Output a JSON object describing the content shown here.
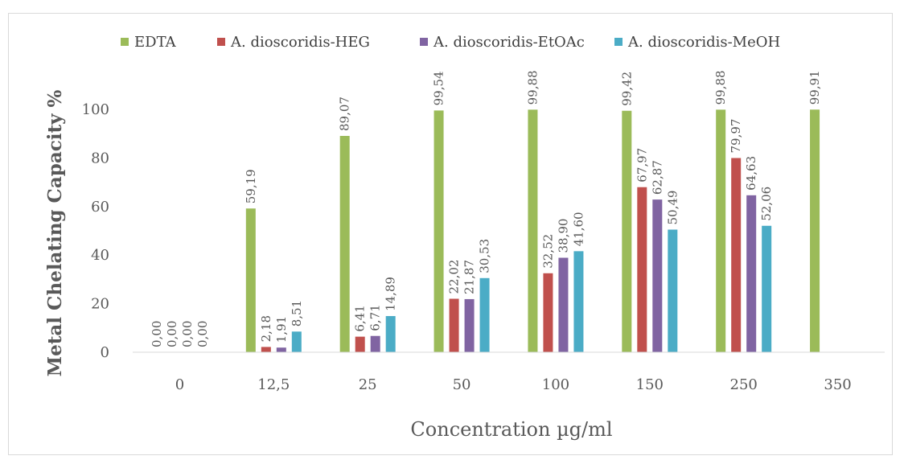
{
  "chart_data": {
    "type": "bar",
    "xlabel": "Concentration µg/ml",
    "ylabel": "Metal Chelating Capacity %",
    "categories": [
      "0",
      "12,5",
      "25",
      "50",
      "100",
      "150",
      "250",
      "350"
    ],
    "ylim": [
      0,
      100
    ],
    "yticks": [
      "0",
      "20",
      "40",
      "60",
      "80",
      "100"
    ],
    "legend_position": "top",
    "series": [
      {
        "name": "EDTA",
        "color": "#9bbb59",
        "values": [
          0.0,
          59.19,
          89.07,
          99.54,
          99.88,
          99.42,
          99.88,
          99.91
        ],
        "labels": [
          "0,00",
          "59,19",
          "89,07",
          "99,54",
          "99,88",
          "99,42",
          "99,88",
          "99,91"
        ]
      },
      {
        "name": "A. dioscoridis-HEG",
        "color": "#c0504d",
        "values": [
          0.0,
          2.18,
          6.41,
          22.02,
          32.52,
          67.97,
          79.97,
          null
        ],
        "labels": [
          "0,00",
          "2,18",
          "6,41",
          "22,02",
          "32,52",
          "67,97",
          "79,97",
          null
        ]
      },
      {
        "name": "A. dioscoridis-EtOAc",
        "color": "#8064a2",
        "values": [
          0.0,
          1.91,
          6.71,
          21.87,
          38.9,
          62.87,
          64.63,
          null
        ],
        "labels": [
          "0,00",
          "1,91",
          "6,71",
          "21,87",
          "38,90",
          "62,87",
          "64,63",
          null
        ]
      },
      {
        "name": "A. dioscoridis-MeOH",
        "color": "#4bacc6",
        "values": [
          0.0,
          8.51,
          14.89,
          30.53,
          41.6,
          50.49,
          52.06,
          null
        ],
        "labels": [
          "0,00",
          "8,51",
          "14,89",
          "30,53",
          "41,60",
          "50,49",
          "52,06",
          null
        ]
      }
    ]
  }
}
